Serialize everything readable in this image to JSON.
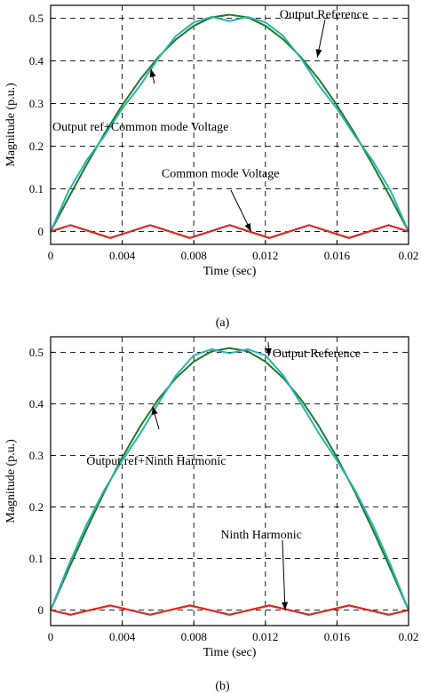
{
  "chart_data": [
    {
      "type": "line",
      "caption": "(a)",
      "xlabel": "Time (sec)",
      "ylabel": "Magnitude (p.u.)",
      "xlim": [
        0,
        0.02
      ],
      "ylim": [
        -0.03,
        0.53
      ],
      "xticks": [
        "0",
        "0.004",
        "0.008",
        "0.012",
        "0.016",
        "0.02"
      ],
      "yticks": [
        "0",
        "0.1",
        "0.2",
        "0.3",
        "0.4",
        "0.5"
      ],
      "grid": true,
      "series": [
        {
          "color": "#1f7a2a",
          "x": [
            0,
            0.001,
            0.002,
            0.003,
            0.004,
            0.005,
            0.006,
            0.007,
            0.008,
            0.009,
            0.01,
            0.011,
            0.012,
            0.013,
            0.014,
            0.015,
            0.016,
            0.017,
            0.018,
            0.019,
            0.02
          ],
          "y": [
            0,
            0.079,
            0.156,
            0.229,
            0.296,
            0.356,
            0.408,
            0.45,
            0.482,
            0.502,
            0.508,
            0.502,
            0.482,
            0.45,
            0.408,
            0.356,
            0.296,
            0.229,
            0.156,
            0.079,
            0
          ]
        },
        {
          "color": "#2bb3b3",
          "x": [
            0,
            0.001,
            0.002,
            0.003,
            0.004,
            0.005,
            0.006,
            0.007,
            0.008,
            0.009,
            0.01,
            0.011,
            0.012,
            0.013,
            0.014,
            0.015,
            0.016,
            0.017,
            0.018,
            0.019,
            0.02
          ],
          "y": [
            0,
            0.095,
            0.166,
            0.224,
            0.288,
            0.342,
            0.405,
            0.458,
            0.49,
            0.503,
            0.493,
            0.503,
            0.49,
            0.458,
            0.405,
            0.342,
            0.288,
            0.224,
            0.166,
            0.095,
            0
          ]
        },
        {
          "color": "#e0261c",
          "x": [
            0,
            0.00111,
            0.00333,
            0.00556,
            0.00778,
            0.01,
            0.01222,
            0.01444,
            0.01667,
            0.01889,
            0.02
          ],
          "y": [
            0,
            0.015,
            -0.015,
            0.015,
            -0.015,
            0.015,
            -0.015,
            0.015,
            -0.015,
            0.015,
            0
          ]
        }
      ],
      "annotations": [
        {
          "text": "Output Reference",
          "x": 0.0128,
          "y": 0.5,
          "arrow_to": [
            0.0149,
            0.408
          ]
        },
        {
          "text": "Output ref+Common mode Voltage",
          "x": 0.0001,
          "y": 0.236,
          "arrow_to": [
            0.0056,
            0.381
          ]
        },
        {
          "text": "Common mode Voltage",
          "x": 0.0062,
          "y": 0.127,
          "arrow_to": [
            0.0112,
            0.0
          ]
        }
      ]
    },
    {
      "type": "line",
      "caption": "(b)",
      "xlabel": "Time (sec)",
      "ylabel": "Magnitude (p.u.)",
      "xlim": [
        0,
        0.02
      ],
      "ylim": [
        -0.03,
        0.53
      ],
      "xticks": [
        "0",
        "0.004",
        "0.008",
        "0.012",
        "0.016",
        "0.02"
      ],
      "yticks": [
        "0",
        "0.1",
        "0.2",
        "0.3",
        "0.4",
        "0.5"
      ],
      "grid": true,
      "series": [
        {
          "color": "#1f7a2a",
          "x": [
            0,
            0.001,
            0.002,
            0.003,
            0.004,
            0.005,
            0.006,
            0.007,
            0.008,
            0.009,
            0.01,
            0.011,
            0.012,
            0.013,
            0.014,
            0.015,
            0.016,
            0.017,
            0.018,
            0.019,
            0.02
          ],
          "y": [
            0,
            0.079,
            0.156,
            0.229,
            0.296,
            0.356,
            0.408,
            0.45,
            0.482,
            0.502,
            0.508,
            0.502,
            0.482,
            0.45,
            0.408,
            0.356,
            0.296,
            0.229,
            0.156,
            0.079,
            0
          ]
        },
        {
          "color": "#2bb3b3",
          "x": [
            0,
            0.001,
            0.002,
            0.003,
            0.004,
            0.005,
            0.006,
            0.007,
            0.008,
            0.009,
            0.01,
            0.011,
            0.012,
            0.013,
            0.014,
            0.015,
            0.016,
            0.017,
            0.018,
            0.019,
            0.02
          ],
          "y": [
            0,
            0.087,
            0.165,
            0.233,
            0.29,
            0.342,
            0.4,
            0.455,
            0.494,
            0.506,
            0.498,
            0.506,
            0.494,
            0.455,
            0.4,
            0.342,
            0.29,
            0.233,
            0.165,
            0.087,
            0
          ]
        },
        {
          "color": "#e0261c",
          "x": [
            0,
            0.00111,
            0.00222,
            0.00333,
            0.00444,
            0.00556,
            0.00667,
            0.00778,
            0.00889,
            0.01,
            0.01111,
            0.01222,
            0.01333,
            0.01444,
            0.01556,
            0.01667,
            0.01778,
            0.01889,
            0.02
          ],
          "y": [
            0,
            -0.009,
            0,
            0.009,
            0,
            -0.009,
            0,
            0.009,
            0,
            -0.009,
            0,
            0.009,
            0,
            -0.009,
            0,
            0.009,
            0,
            -0.009,
            0
          ]
        }
      ],
      "annotations": [
        {
          "text": "Output Reference",
          "x": 0.0124,
          "y": 0.49,
          "arrow_to": [
            0.0122,
            0.492
          ]
        },
        {
          "text": "Output ref+Ninth Harmonic",
          "x": 0.002,
          "y": 0.282,
          "arrow_to": [
            0.0057,
            0.395
          ]
        },
        {
          "text": "Ninth Harmonic",
          "x": 0.0095,
          "y": 0.139,
          "arrow_to": [
            0.0131,
            0.0
          ]
        }
      ]
    }
  ]
}
